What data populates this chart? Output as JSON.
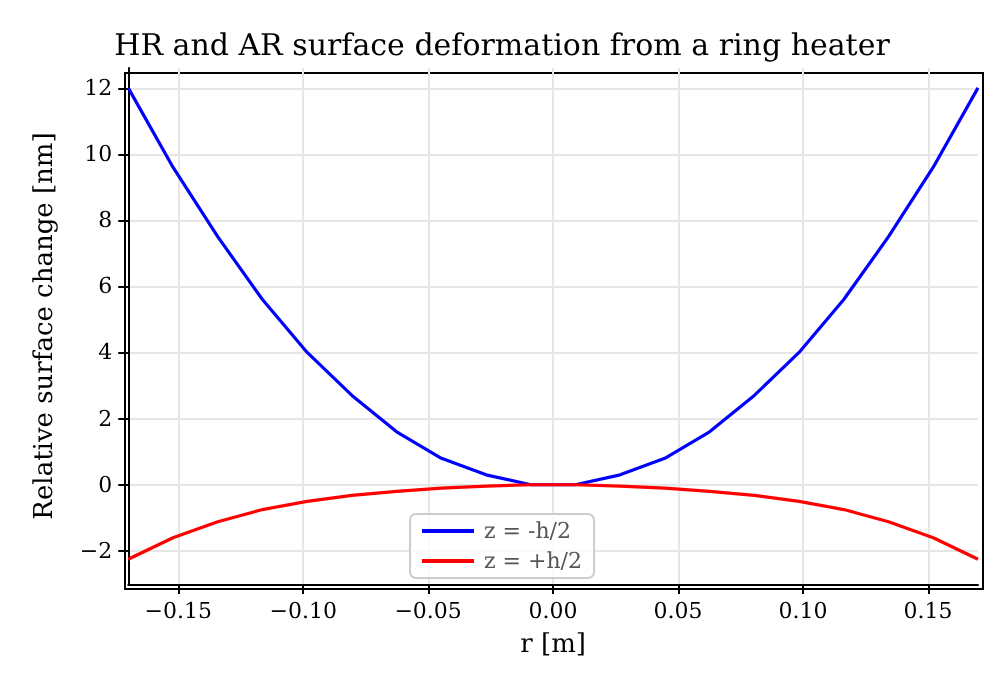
{
  "chart_data": {
    "type": "line",
    "title": "HR and AR surface deformation from a ring heater",
    "xlabel": "r [m]",
    "ylabel": "Relative surface change [nm]",
    "x": [
      -0.17,
      -0.1521,
      -0.1342,
      -0.1163,
      -0.0984,
      -0.0805,
      -0.0626,
      -0.0447,
      -0.0268,
      -0.0089,
      0.0089,
      0.0268,
      0.0447,
      0.0626,
      0.0805,
      0.0984,
      0.1163,
      0.1342,
      0.1521,
      0.17
    ],
    "series": [
      {
        "name": "z = -h/2",
        "color": "#0000ff",
        "values": [
          12,
          9.6,
          7.5,
          5.6,
          4.0,
          2.7,
          1.6,
          0.8,
          0.3,
          0.0,
          0.0,
          0.3,
          0.8,
          1.6,
          2.7,
          4.0,
          5.6,
          7.5,
          9.6,
          12
        ]
      },
      {
        "name": "z = +h/2",
        "color": "#ff0000",
        "values": [
          -2.25,
          -1.6,
          -1.12,
          -0.75,
          -0.5,
          -0.32,
          -0.2,
          -0.1,
          -0.04,
          0.0,
          0.0,
          -0.04,
          -0.1,
          -0.2,
          -0.32,
          -0.5,
          -0.75,
          -1.12,
          -1.6,
          -2.25
        ]
      }
    ],
    "xlim": [
      -0.17,
      0.17
    ],
    "xticks": [
      {
        "value": -0.15,
        "label": "−0.15"
      },
      {
        "value": -0.1,
        "label": "−0.10"
      },
      {
        "value": -0.05,
        "label": "−0.05"
      },
      {
        "value": 0,
        "label": "0.00"
      },
      {
        "value": 0.05,
        "label": "0.05"
      },
      {
        "value": 0.1,
        "label": "0.10"
      },
      {
        "value": 0.15,
        "label": "0.15"
      }
    ],
    "ylim": [
      -3,
      12.6
    ],
    "yticks": [
      {
        "value": -2,
        "label": "−2"
      },
      0,
      2,
      4,
      6,
      8,
      10,
      12
    ],
    "grid": true,
    "legend": "bottom",
    "marker": "none",
    "line_style": "solid"
  }
}
